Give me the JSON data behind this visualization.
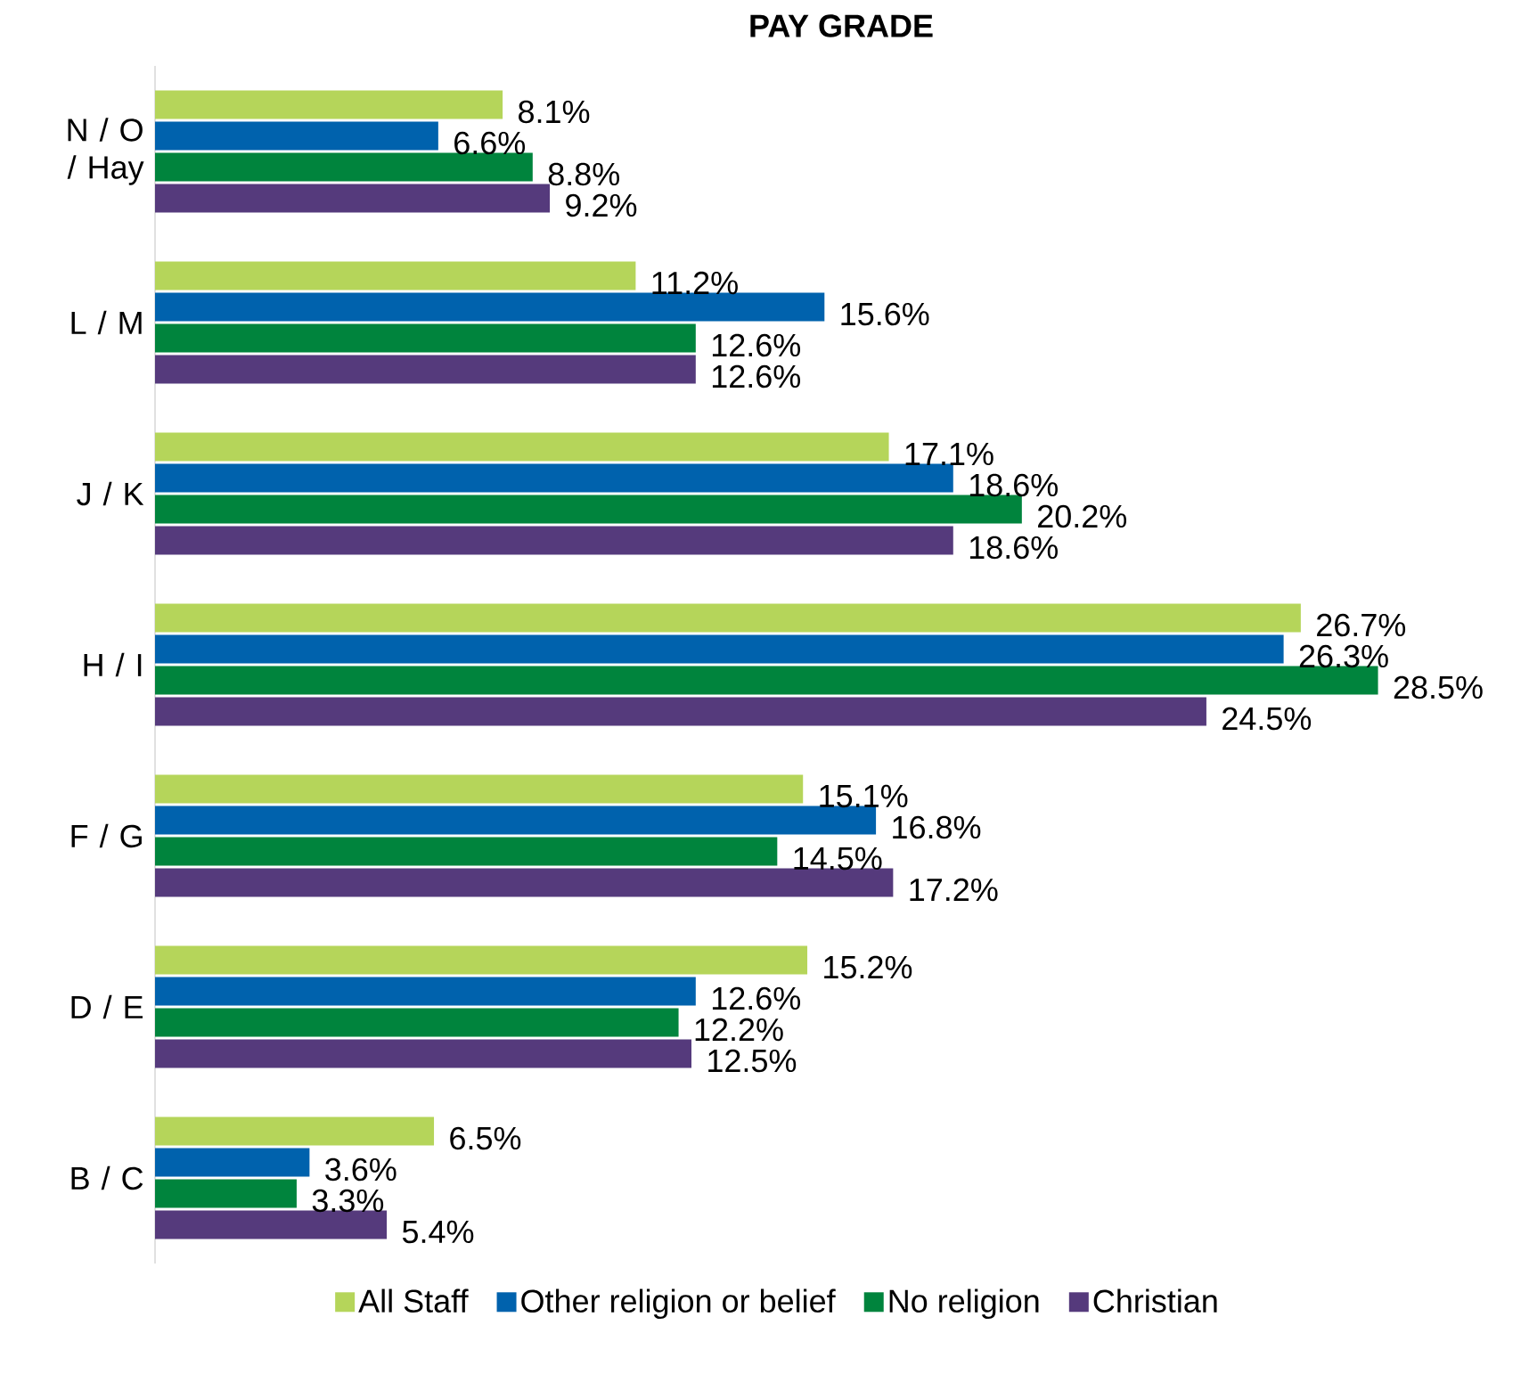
{
  "chart_data": {
    "type": "bar",
    "orientation": "horizontal",
    "title": "PAY GRADE",
    "categories": [
      "N / O / Hay",
      "L / M",
      "J / K",
      "H / I",
      "F / G",
      "D / E",
      "B / C"
    ],
    "series": [
      {
        "name": "All Staff",
        "color": "#b5d55a",
        "values": [
          8.1,
          11.2,
          17.1,
          26.7,
          15.1,
          15.2,
          6.5
        ],
        "value_labels": [
          "8.1%",
          "11.2%",
          "17.1%",
          "26.7%",
          "15.1%",
          "15.2%",
          "6.5%"
        ]
      },
      {
        "name": "Other religion or belief",
        "color": "#0062ad",
        "values": [
          6.6,
          15.6,
          18.6,
          26.3,
          16.8,
          12.6,
          3.6
        ],
        "value_labels": [
          "6.6%",
          "15.6%",
          "18.6%",
          "26.3%",
          "16.8%",
          "12.6%",
          "3.6%"
        ]
      },
      {
        "name": "No religion",
        "color": "#00843d",
        "values": [
          8.8,
          12.6,
          20.2,
          28.5,
          14.5,
          12.2,
          3.3
        ],
        "value_labels": [
          "8.8%",
          "12.6%",
          "20.2%",
          "28.5%",
          "14.5%",
          "12.2%",
          "3.3%"
        ]
      },
      {
        "name": "Christian",
        "color": "#553a7c",
        "values": [
          9.2,
          12.6,
          18.6,
          24.5,
          17.2,
          12.5,
          5.4
        ],
        "value_labels": [
          "9.2%",
          "12.6%",
          "18.6%",
          "24.5%",
          "17.2%",
          "12.5%",
          "5.4%"
        ]
      }
    ],
    "tick_labels": "y",
    "legend": "bottom",
    "grid": false
  }
}
